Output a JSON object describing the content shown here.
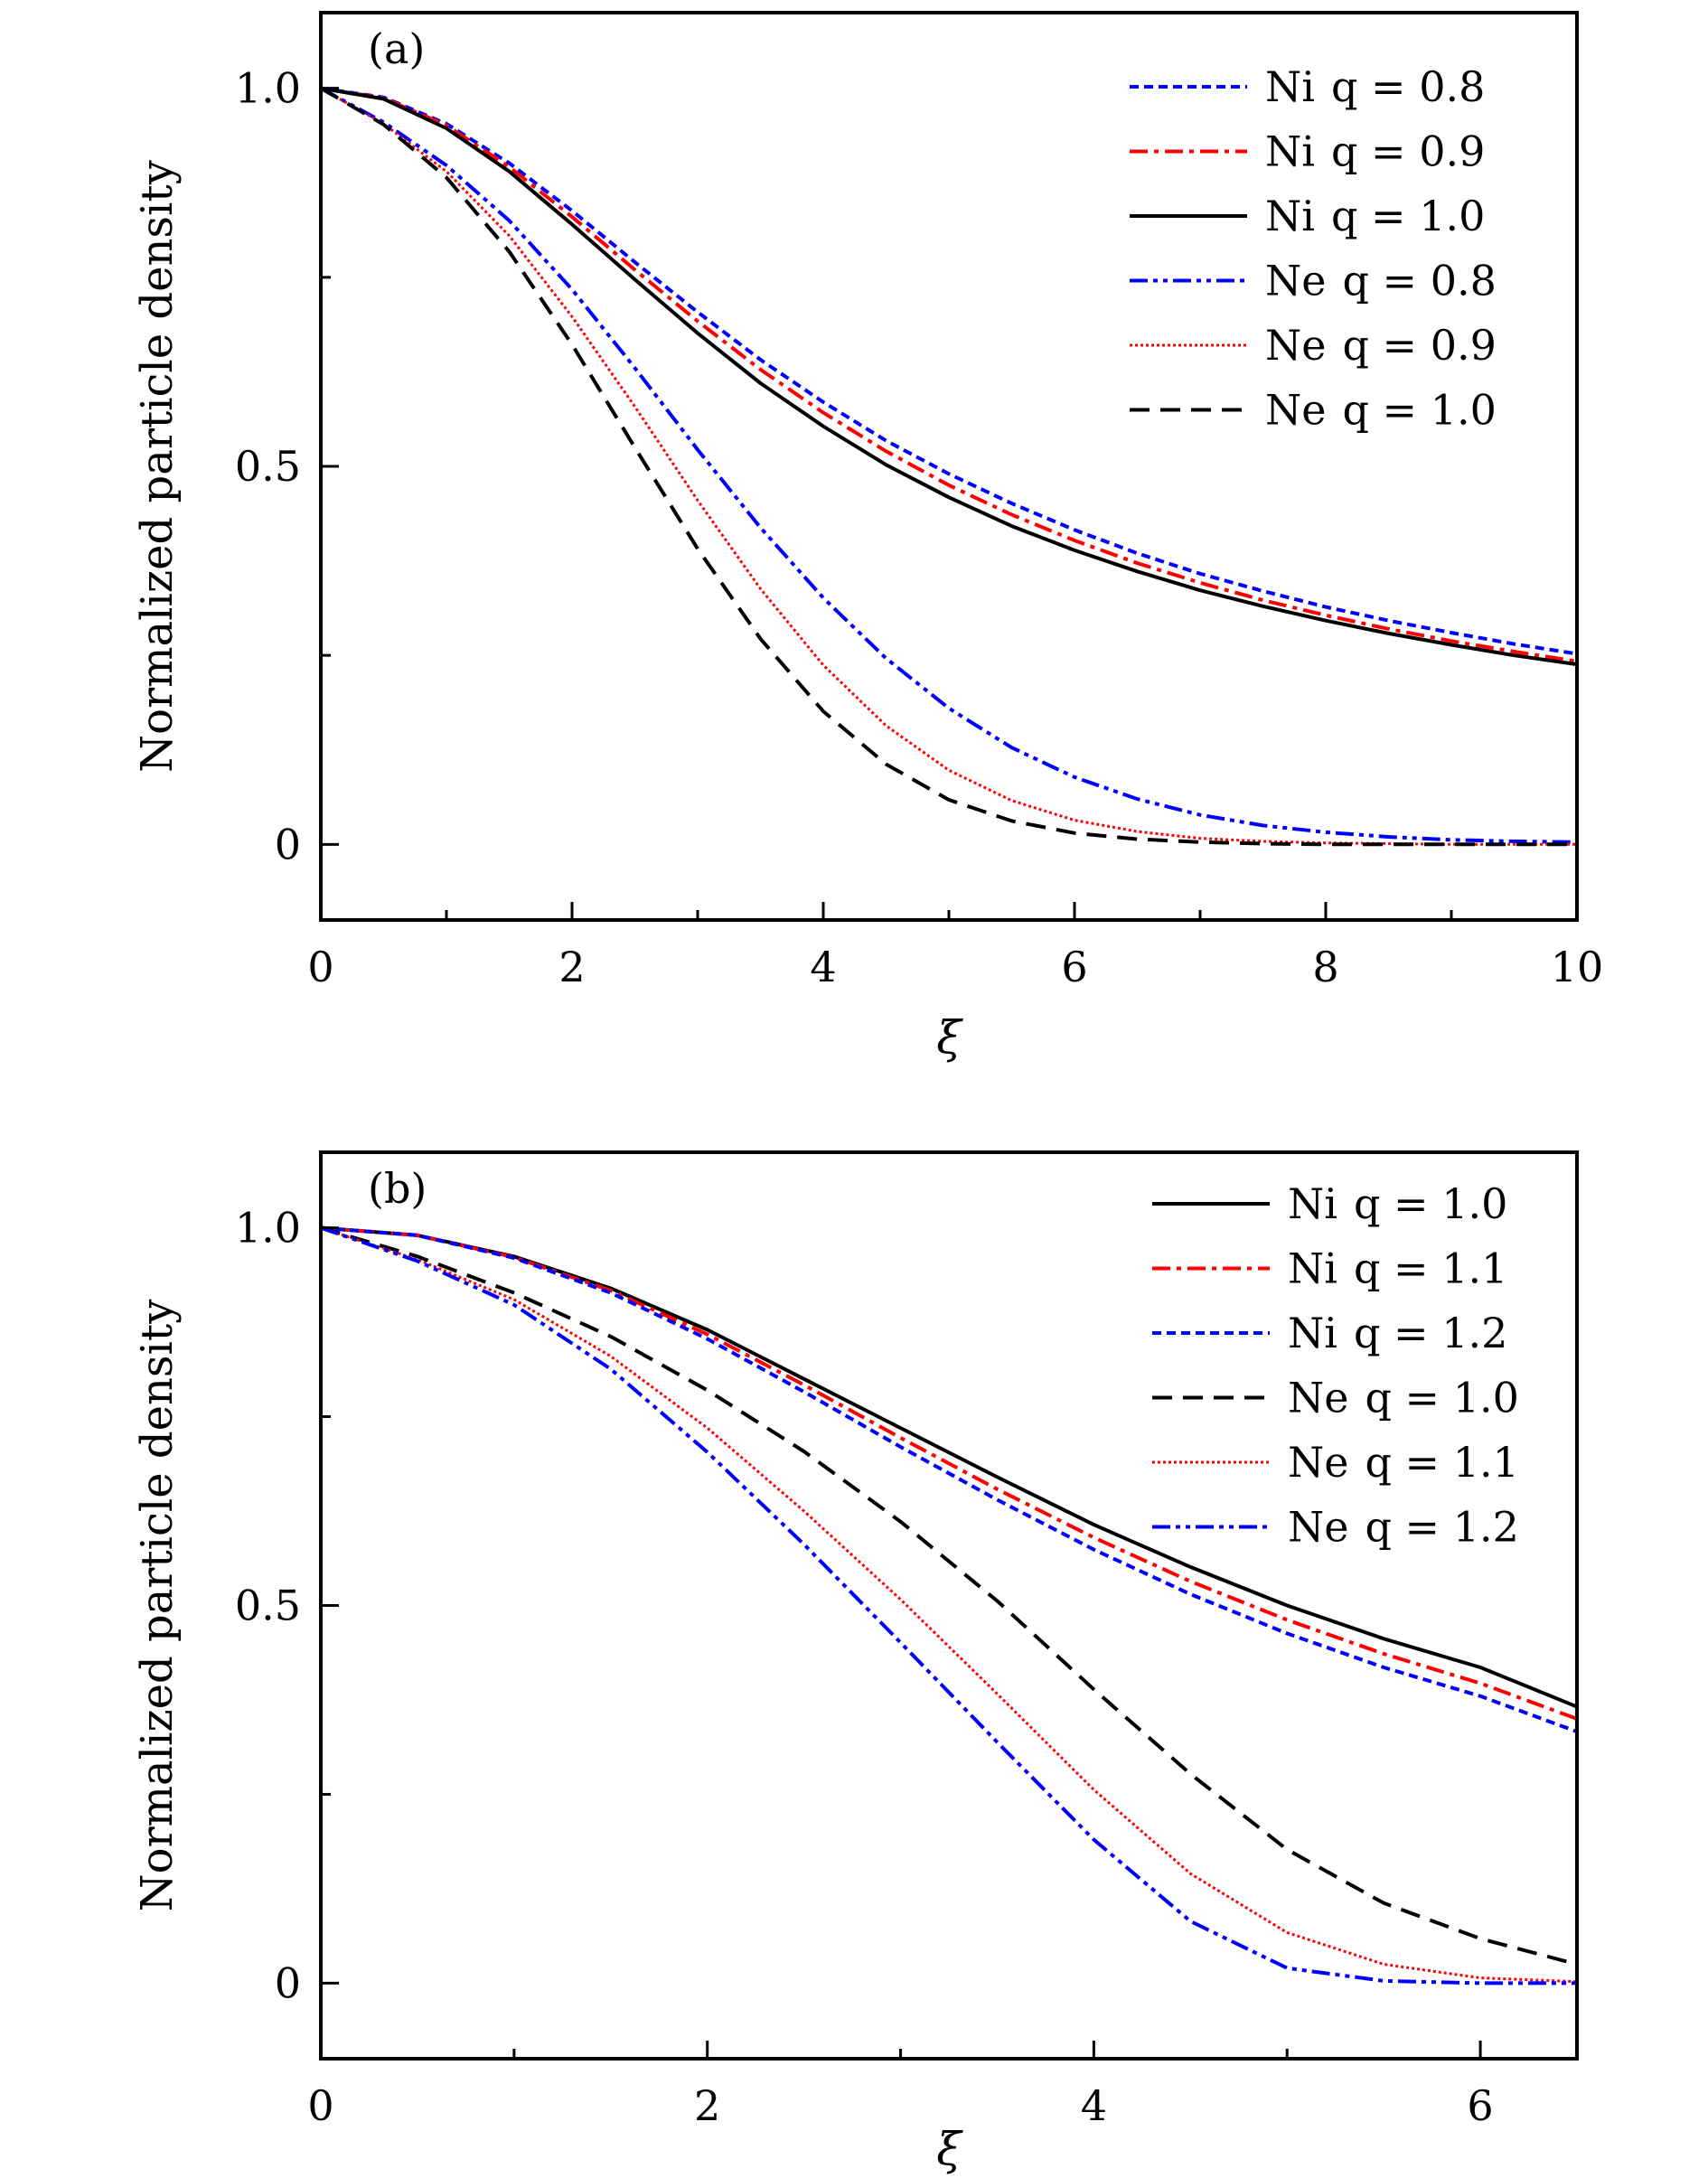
{
  "chart_data": [
    {
      "type": "line",
      "panel_label": "(a)",
      "xlabel": "ξ",
      "ylabel": "Normalized particle density",
      "xlim": [
        0,
        10
      ],
      "ylim": [
        -0.1,
        1.1
      ],
      "x_ticks": [
        0,
        2,
        4,
        6,
        8,
        10
      ],
      "x_tick_labels": [
        "0",
        "2",
        "4",
        "6",
        "8",
        "10"
      ],
      "y_ticks": [
        0,
        0.5,
        1.0
      ],
      "y_tick_labels": [
        "0",
        "0.5",
        "1.0"
      ],
      "legend_position": "top-right",
      "grid": false,
      "x": [
        0,
        0.5,
        1,
        1.5,
        2,
        2.5,
        3,
        3.5,
        4,
        4.5,
        5,
        5.5,
        6,
        6.5,
        7,
        7.5,
        8,
        8.5,
        9,
        9.5,
        10
      ],
      "series": [
        {
          "species": "Ni",
          "q_label": "q = 0.8",
          "color": "#0000ff",
          "dash": "dot",
          "values": [
            1.0,
            0.988,
            0.953,
            0.901,
            0.838,
            0.77,
            0.704,
            0.641,
            0.585,
            0.534,
            0.49,
            0.451,
            0.416,
            0.385,
            0.358,
            0.335,
            0.314,
            0.296,
            0.28,
            0.265,
            0.252
          ]
        },
        {
          "species": "Ni",
          "q_label": "q = 0.9",
          "color": "#ff0000",
          "dash": "dashdot",
          "values": [
            1.0,
            0.987,
            0.951,
            0.896,
            0.83,
            0.76,
            0.692,
            0.628,
            0.571,
            0.52,
            0.475,
            0.436,
            0.402,
            0.372,
            0.346,
            0.323,
            0.303,
            0.285,
            0.269,
            0.255,
            0.242
          ]
        },
        {
          "species": "Ni",
          "q_label": "q = 1.0",
          "color": "#000000",
          "dash": "solid",
          "values": [
            1.0,
            0.986,
            0.947,
            0.89,
            0.82,
            0.747,
            0.676,
            0.61,
            0.553,
            0.502,
            0.459,
            0.421,
            0.389,
            0.361,
            0.336,
            0.315,
            0.296,
            0.279,
            0.264,
            0.25,
            0.238
          ]
        },
        {
          "species": "Ne",
          "q_label": "q = 0.8",
          "color": "#0000ff",
          "dash": "dashdotdot",
          "values": [
            1.0,
            0.955,
            0.898,
            0.825,
            0.734,
            0.63,
            0.522,
            0.419,
            0.326,
            0.246,
            0.18,
            0.128,
            0.089,
            0.06,
            0.039,
            0.025,
            0.016,
            0.01,
            0.006,
            0.004,
            0.003
          ]
        },
        {
          "species": "Ne",
          "q_label": "q = 0.9",
          "color": "#ff0000",
          "dash": "fine-dot",
          "values": [
            1.0,
            0.953,
            0.89,
            0.805,
            0.698,
            0.579,
            0.455,
            0.338,
            0.237,
            0.157,
            0.098,
            0.058,
            0.032,
            0.017,
            0.008,
            0.004,
            0.002,
            0.001,
            0.0,
            0.0,
            0.0
          ]
        },
        {
          "species": "Ne",
          "q_label": "q = 1.0",
          "color": "#000000",
          "dash": "dash",
          "values": [
            1.0,
            0.952,
            0.882,
            0.784,
            0.661,
            0.525,
            0.391,
            0.272,
            0.176,
            0.106,
            0.059,
            0.031,
            0.015,
            0.007,
            0.003,
            0.001,
            0.0,
            0.0,
            0.0,
            0.0,
            0.0
          ]
        }
      ]
    },
    {
      "type": "line",
      "panel_label": "(b)",
      "xlabel": "ξ",
      "ylabel": "Normalized particle density",
      "xlim": [
        0,
        6.5
      ],
      "ylim": [
        -0.1,
        1.1
      ],
      "x_ticks": [
        0,
        2,
        4,
        6
      ],
      "x_tick_labels": [
        "0",
        "2",
        "4",
        "6"
      ],
      "y_ticks": [
        0,
        0.5,
        1.0
      ],
      "y_tick_labels": [
        "0",
        "0.5",
        "1.0"
      ],
      "legend_position": "top-right",
      "grid": false,
      "x": [
        0,
        0.5,
        1,
        1.5,
        2,
        2.5,
        3,
        3.5,
        4,
        4.5,
        5,
        5.5,
        6,
        6.5
      ],
      "series": [
        {
          "species": "Ni",
          "q_label": "q = 1.0",
          "color": "#000000",
          "dash": "solid",
          "values": [
            1.0,
            0.99,
            0.962,
            0.92,
            0.865,
            0.8,
            0.735,
            0.67,
            0.607,
            0.551,
            0.5,
            0.456,
            0.418,
            0.366
          ]
        },
        {
          "species": "Ni",
          "q_label": "q = 1.1",
          "color": "#ff0000",
          "dash": "dashdot",
          "values": [
            1.0,
            0.99,
            0.961,
            0.917,
            0.859,
            0.792,
            0.722,
            0.654,
            0.59,
            0.532,
            0.481,
            0.436,
            0.397,
            0.35
          ]
        },
        {
          "species": "Ni",
          "q_label": "q = 1.2",
          "color": "#0000ff",
          "dash": "dot",
          "values": [
            1.0,
            0.99,
            0.96,
            0.914,
            0.853,
            0.783,
            0.71,
            0.64,
            0.574,
            0.515,
            0.463,
            0.418,
            0.38,
            0.333
          ]
        },
        {
          "species": "Ne",
          "q_label": "q = 1.0",
          "color": "#000000",
          "dash": "dash",
          "values": [
            1.0,
            0.962,
            0.914,
            0.856,
            0.785,
            0.704,
            0.611,
            0.506,
            0.389,
            0.277,
            0.177,
            0.106,
            0.059,
            0.025
          ]
        },
        {
          "species": "Ne",
          "q_label": "q = 1.1",
          "color": "#ff0000",
          "dash": "fine-dot",
          "values": [
            1.0,
            0.958,
            0.905,
            0.83,
            0.735,
            0.625,
            0.508,
            0.383,
            0.256,
            0.145,
            0.067,
            0.025,
            0.007,
            0.002
          ]
        },
        {
          "species": "Ne",
          "q_label": "q = 1.2",
          "color": "#0000ff",
          "dash": "dashdotdot",
          "values": [
            1.0,
            0.956,
            0.898,
            0.813,
            0.703,
            0.581,
            0.451,
            0.319,
            0.19,
            0.082,
            0.02,
            0.003,
            0.0,
            0.0
          ]
        }
      ]
    }
  ]
}
